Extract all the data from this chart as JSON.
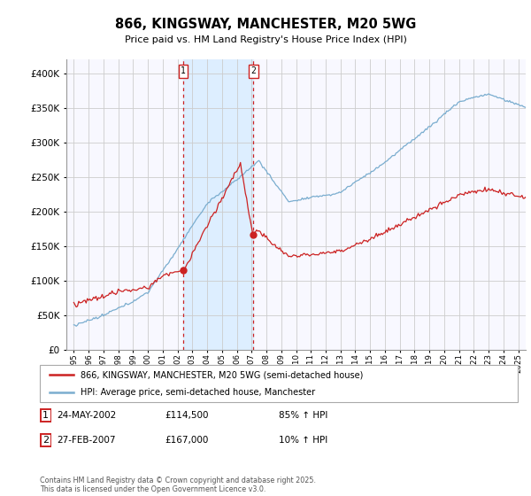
{
  "title": "866, KINGSWAY, MANCHESTER, M20 5WG",
  "subtitle": "Price paid vs. HM Land Registry's House Price Index (HPI)",
  "legend_line1": "866, KINGSWAY, MANCHESTER, M20 5WG (semi-detached house)",
  "legend_line2": "HPI: Average price, semi-detached house, Manchester",
  "sale1_date": "24-MAY-2002",
  "sale1_price_str": "£114,500",
  "sale1_hpi": "85% ↑ HPI",
  "sale2_date": "27-FEB-2007",
  "sale2_price_str": "£167,000",
  "sale2_hpi": "10% ↑ HPI",
  "footer": "Contains HM Land Registry data © Crown copyright and database right 2025.\nThis data is licensed under the Open Government Licence v3.0.",
  "red_color": "#cc2222",
  "blue_color": "#7aadcf",
  "vline_color": "#cc2222",
  "box_color": "#cc2222",
  "shade_color": "#ddeeff",
  "grid_color": "#cccccc",
  "bg_color": "#f8f8ff",
  "sale1_year": 2002.38,
  "sale2_year": 2007.12,
  "sale1_price": 114500,
  "sale2_price": 167000,
  "ylim_min": 0,
  "ylim_max": 420000,
  "xlim_min": 1994.5,
  "xlim_max": 2025.5
}
